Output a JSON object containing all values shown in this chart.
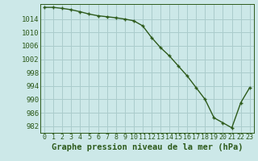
{
  "x": [
    0,
    1,
    2,
    3,
    4,
    5,
    6,
    7,
    8,
    9,
    10,
    11,
    12,
    13,
    14,
    15,
    16,
    17,
    18,
    19,
    20,
    21,
    22,
    23
  ],
  "y": [
    1017.5,
    1017.5,
    1017.2,
    1016.8,
    1016.2,
    1015.5,
    1015.0,
    1014.7,
    1014.4,
    1014.0,
    1013.5,
    1012.0,
    1008.5,
    1005.5,
    1003.0,
    1000.0,
    997.0,
    993.5,
    990.0,
    984.5,
    983.0,
    981.5,
    989.0,
    993.5
  ],
  "bg_color": "#cce8e8",
  "grid_color": "#aacccc",
  "line_color": "#2d5a1b",
  "marker_color": "#2d5a1b",
  "xlabel": "Graphe pression niveau de la mer (hPa)",
  "ylabel_ticks": [
    982,
    986,
    990,
    994,
    998,
    1002,
    1006,
    1010,
    1014
  ],
  "xlim": [
    -0.5,
    23.5
  ],
  "ylim": [
    980,
    1018.5
  ],
  "xtick_labels": [
    "0",
    "1",
    "2",
    "3",
    "4",
    "5",
    "6",
    "7",
    "8",
    "9",
    "10",
    "11",
    "12",
    "13",
    "14",
    "15",
    "16",
    "17",
    "18",
    "19",
    "20",
    "21",
    "22",
    "23"
  ],
  "tick_fontsize": 6.5,
  "label_fontsize": 7.5
}
